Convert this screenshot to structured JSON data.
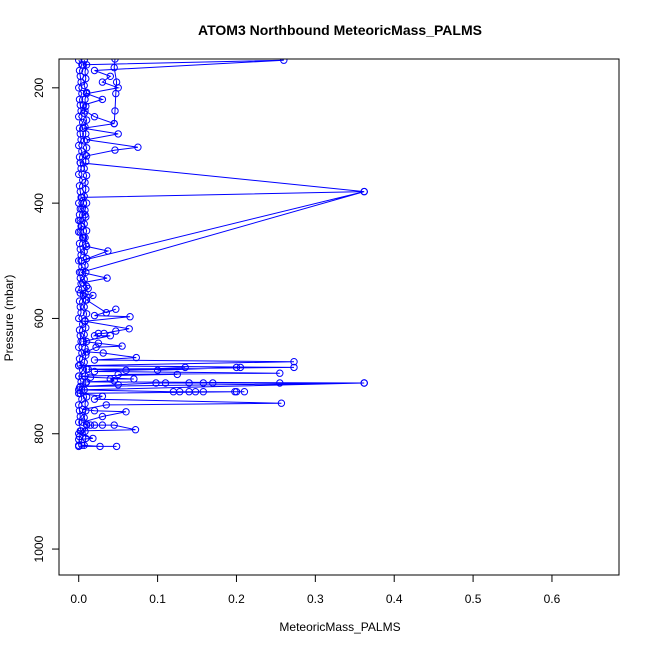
{
  "chart_data": {
    "type": "line",
    "title": "ATOM3 Northbound MeteoricMass_PALMS",
    "xlabel": "MeteoricMass_PALMS",
    "ylabel": "Pressure (mbar)",
    "xlim": [
      -0.025,
      0.685
    ],
    "ylim": [
      1045,
      150
    ],
    "y_reversed": true,
    "x_ticks": [
      0.0,
      0.1,
      0.2,
      0.3,
      0.4,
      0.5,
      0.6
    ],
    "x_tick_labels": [
      "0.0",
      "0.1",
      "0.2",
      "0.3",
      "0.4",
      "0.5",
      "0.6"
    ],
    "y_ticks": [
      200,
      400,
      600,
      800,
      1000
    ],
    "y_tick_labels": [
      "200",
      "400",
      "600",
      "800",
      "1000"
    ],
    "grid": false,
    "marker": "open-circle",
    "color": "#0000ff",
    "series": [
      {
        "points": [
          [
            0.0,
            820
          ],
          [
            0.001,
            805
          ],
          [
            0.003,
            795
          ],
          [
            0.0,
            780
          ],
          [
            0.002,
            770
          ],
          [
            0.001,
            760
          ],
          [
            0.0,
            750
          ],
          [
            0.004,
            740
          ],
          [
            0.002,
            730
          ],
          [
            0.001,
            720
          ],
          [
            0.003,
            710
          ],
          [
            0.0,
            700
          ],
          [
            0.005,
            690
          ],
          [
            0.002,
            680
          ],
          [
            0.001,
            670
          ],
          [
            0.004,
            660
          ],
          [
            0.0,
            650
          ],
          [
            0.003,
            640
          ],
          [
            0.002,
            630
          ],
          [
            0.001,
            620
          ],
          [
            0.005,
            610
          ],
          [
            0.0,
            600
          ],
          [
            0.003,
            590
          ],
          [
            0.002,
            580
          ],
          [
            0.001,
            570
          ],
          [
            0.006,
            560
          ],
          [
            0.0,
            550
          ],
          [
            0.003,
            540
          ],
          [
            0.002,
            530
          ],
          [
            0.001,
            520
          ],
          [
            0.004,
            510
          ],
          [
            0.0,
            500
          ],
          [
            0.003,
            490
          ],
          [
            0.002,
            480
          ],
          [
            0.001,
            470
          ],
          [
            0.005,
            460
          ],
          [
            0.0,
            450
          ],
          [
            0.003,
            440
          ],
          [
            0.002,
            430
          ],
          [
            0.001,
            420
          ],
          [
            0.004,
            410
          ],
          [
            0.0,
            400
          ],
          [
            0.003,
            390
          ],
          [
            0.002,
            380
          ],
          [
            0.001,
            370
          ],
          [
            0.005,
            360
          ],
          [
            0.0,
            350
          ],
          [
            0.003,
            340
          ],
          [
            0.002,
            330
          ],
          [
            0.001,
            320
          ],
          [
            0.004,
            310
          ],
          [
            0.0,
            300
          ],
          [
            0.003,
            290
          ],
          [
            0.002,
            280
          ],
          [
            0.001,
            270
          ],
          [
            0.005,
            260
          ],
          [
            0.0,
            250
          ],
          [
            0.003,
            240
          ],
          [
            0.002,
            230
          ],
          [
            0.001,
            220
          ],
          [
            0.004,
            210
          ],
          [
            0.0,
            200
          ],
          [
            0.003,
            190
          ],
          [
            0.002,
            180
          ],
          [
            0.001,
            170
          ],
          [
            0.004,
            160
          ],
          [
            0.0,
            152
          ]
        ]
      },
      {
        "points": [
          [
            0.007,
            820
          ],
          [
            0.009,
            808
          ],
          [
            0.008,
            796
          ],
          [
            0.01,
            784
          ],
          [
            0.007,
            772
          ],
          [
            0.009,
            760
          ],
          [
            0.008,
            748
          ],
          [
            0.01,
            736
          ],
          [
            0.007,
            724
          ],
          [
            0.009,
            712
          ],
          [
            0.008,
            700
          ],
          [
            0.01,
            688
          ],
          [
            0.007,
            676
          ],
          [
            0.009,
            664
          ],
          [
            0.008,
            652
          ],
          [
            0.01,
            640
          ],
          [
            0.007,
            628
          ],
          [
            0.009,
            616
          ],
          [
            0.008,
            604
          ],
          [
            0.01,
            592
          ],
          [
            0.007,
            580
          ],
          [
            0.009,
            568
          ],
          [
            0.008,
            556
          ],
          [
            0.01,
            544
          ],
          [
            0.007,
            532
          ],
          [
            0.009,
            520
          ],
          [
            0.008,
            508
          ],
          [
            0.01,
            496
          ],
          [
            0.007,
            484
          ],
          [
            0.009,
            472
          ],
          [
            0.008,
            460
          ],
          [
            0.01,
            448
          ],
          [
            0.007,
            436
          ],
          [
            0.009,
            424
          ],
          [
            0.008,
            412
          ],
          [
            0.01,
            400
          ],
          [
            0.007,
            388
          ],
          [
            0.009,
            376
          ],
          [
            0.008,
            364
          ],
          [
            0.01,
            352
          ],
          [
            0.007,
            340
          ],
          [
            0.009,
            328
          ],
          [
            0.008,
            316
          ],
          [
            0.01,
            304
          ],
          [
            0.007,
            292
          ],
          [
            0.009,
            280
          ],
          [
            0.008,
            268
          ],
          [
            0.01,
            256
          ],
          [
            0.007,
            244
          ],
          [
            0.009,
            232
          ],
          [
            0.008,
            220
          ],
          [
            0.01,
            208
          ],
          [
            0.007,
            196
          ],
          [
            0.009,
            184
          ],
          [
            0.008,
            172
          ],
          [
            0.01,
            160
          ],
          [
            0.007,
            152
          ]
        ]
      },
      {
        "points": [
          [
            0.005,
            160
          ],
          [
            0.26,
            152
          ],
          [
            0.02,
            170
          ],
          [
            0.04,
            180
          ],
          [
            0.03,
            190
          ],
          [
            0.05,
            200
          ],
          [
            0.01,
            210
          ],
          [
            0.03,
            220
          ],
          [
            0.006,
            230
          ],
          [
            0.008,
            240
          ],
          [
            0.02,
            250
          ],
          [
            0.045,
            262
          ],
          [
            0.006,
            270
          ],
          [
            0.05,
            280
          ],
          [
            0.01,
            290
          ],
          [
            0.075,
            303
          ],
          [
            0.046,
            308
          ],
          [
            0.01,
            318
          ],
          [
            0.002,
            330
          ],
          [
            0.362,
            380
          ],
          [
            0.004,
            390
          ],
          [
            0.006,
            400
          ],
          [
            0.002,
            410
          ],
          [
            0.008,
            420
          ],
          [
            0.0,
            430
          ],
          [
            0.004,
            440
          ],
          [
            0.002,
            450
          ],
          [
            0.006,
            460
          ],
          [
            0.01,
            475
          ],
          [
            0.037,
            483
          ],
          [
            0.003,
            500
          ],
          [
            0.362,
            380
          ],
          [
            0.003,
            520
          ],
          [
            0.036,
            530
          ],
          [
            0.005,
            538
          ],
          [
            0.012,
            548
          ],
          [
            0.002,
            556
          ],
          [
            0.018,
            560
          ],
          [
            0.01,
            568
          ],
          [
            0.035,
            590
          ],
          [
            0.047,
            584
          ],
          [
            0.02,
            595
          ],
          [
            0.065,
            597
          ],
          [
            0.008,
            605
          ],
          [
            0.064,
            618
          ],
          [
            0.047,
            622
          ],
          [
            0.032,
            626
          ],
          [
            0.025,
            626
          ],
          [
            0.02,
            630
          ],
          [
            0.04,
            630
          ],
          [
            0.005,
            640
          ],
          [
            0.025,
            643
          ],
          [
            0.055,
            648
          ],
          [
            0.022,
            650
          ],
          [
            0.01,
            658
          ],
          [
            0.031,
            660
          ],
          [
            0.073,
            668
          ],
          [
            0.02,
            672
          ],
          [
            0.273,
            675
          ],
          [
            0.0,
            682
          ]
        ]
      },
      {
        "points": [
          [
            0.0,
            682
          ],
          [
            0.273,
            685
          ],
          [
            0.012,
            688
          ],
          [
            0.06,
            690
          ],
          [
            0.2,
            685
          ],
          [
            0.205,
            685
          ],
          [
            0.1,
            690
          ],
          [
            0.135,
            685
          ],
          [
            0.02,
            692
          ],
          [
            0.255,
            695
          ],
          [
            0.05,
            697
          ],
          [
            0.125,
            697
          ],
          [
            0.0,
            700
          ],
          [
            0.015,
            702
          ],
          [
            0.07,
            705
          ],
          [
            0.04,
            705
          ],
          [
            0.045,
            708
          ],
          [
            0.01,
            710
          ],
          [
            0.362,
            712
          ],
          [
            0.255,
            712
          ],
          [
            0.11,
            712
          ],
          [
            0.14,
            712
          ],
          [
            0.158,
            712
          ],
          [
            0.17,
            712
          ],
          [
            0.098,
            712
          ],
          [
            0.05,
            715
          ],
          [
            0.002,
            718
          ],
          [
            0.362,
            712
          ],
          [
            0.0,
            724
          ],
          [
            0.12,
            727
          ],
          [
            0.14,
            727
          ],
          [
            0.128,
            727
          ],
          [
            0.148,
            727
          ],
          [
            0.158,
            727
          ],
          [
            0.198,
            727
          ],
          [
            0.21,
            727
          ],
          [
            0.2,
            727
          ],
          [
            0.0,
            730
          ],
          [
            0.03,
            735
          ],
          [
            0.02,
            740
          ],
          [
            0.257,
            747
          ],
          [
            0.035,
            750
          ],
          [
            0.005,
            758
          ],
          [
            0.02,
            760
          ],
          [
            0.06,
            762
          ],
          [
            0.03,
            770
          ],
          [
            0.005,
            780
          ],
          [
            0.01,
            785
          ],
          [
            0.02,
            785
          ],
          [
            0.015,
            785
          ],
          [
            0.03,
            785
          ],
          [
            0.045,
            785
          ],
          [
            0.072,
            793
          ],
          [
            0.002,
            795
          ],
          [
            0.0,
            800
          ],
          [
            0.018,
            808
          ],
          [
            0.0,
            810
          ],
          [
            0.004,
            820
          ],
          [
            0.027,
            822
          ],
          [
            0.048,
            822
          ],
          [
            0.0,
            822
          ]
        ]
      },
      {
        "points": [
          [
            0.046,
            150
          ],
          [
            0.045,
            165
          ],
          [
            0.048,
            190
          ],
          [
            0.047,
            210
          ],
          [
            0.046,
            240
          ],
          [
            0.045,
            262
          ]
        ]
      }
    ]
  }
}
